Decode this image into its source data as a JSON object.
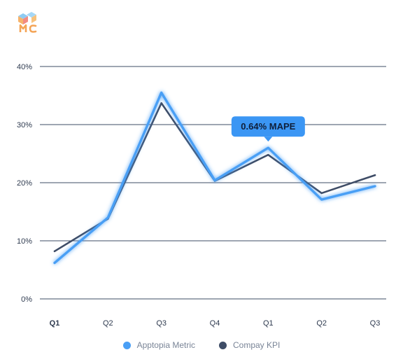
{
  "colors": {
    "apptopia": "#4a9ff5",
    "kpi": "#3e4c66",
    "grid": "#3e4c66",
    "tooltip_bg": "#3b96f4",
    "tooltip_text": "#0f1f3a"
  },
  "logo": {
    "icon": "mc-cube-logo",
    "text": "MC"
  },
  "tooltip": {
    "label": "0.64% MAPE",
    "anchor_index": 4
  },
  "legend": [
    {
      "label": "Apptopia Metric",
      "color": "#4a9ff5"
    },
    {
      "label": "Compay KPI",
      "color": "#3e4c66"
    }
  ],
  "chart_data": {
    "type": "line",
    "categories": [
      "Q1",
      "Q2",
      "Q3",
      "Q4",
      "Q1",
      "Q2",
      "Q3"
    ],
    "y_ticks": [
      "0%",
      "10%",
      "20%",
      "30%",
      "40%"
    ],
    "ylim": [
      0,
      40
    ],
    "grid": true,
    "legend_position": "bottom",
    "series": [
      {
        "name": "Apptopia Metric",
        "values": [
          6.2,
          14.0,
          35.5,
          20.4,
          26.0,
          17.1,
          19.4
        ]
      },
      {
        "name": "Compay KPI",
        "values": [
          8.2,
          13.8,
          33.7,
          20.3,
          24.8,
          18.2,
          21.3
        ]
      }
    ]
  }
}
